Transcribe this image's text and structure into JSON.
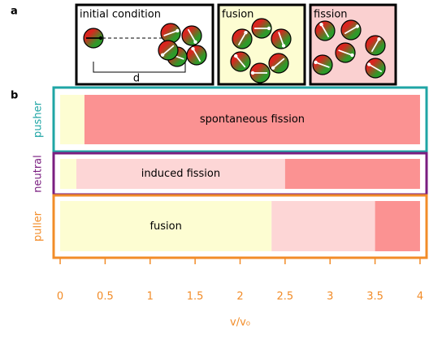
{
  "panels": {
    "a": "a",
    "b": "b",
    "boxes": [
      "initial condition",
      "fusion",
      "fission"
    ],
    "distance_label": "d"
  },
  "chart_data": {
    "type": "stacked-barh",
    "categories": [
      "pusher",
      "neutral",
      "puller"
    ],
    "category_colors": [
      "#1fa5a5",
      "#7a1e80",
      "#f28c28"
    ],
    "series": [
      {
        "color": "#fdfdd2",
        "values": [
          0.27,
          0.18,
          2.35
        ]
      },
      {
        "color": "#fdd6d6",
        "values": [
          0,
          2.32,
          1.15
        ]
      },
      {
        "color": "#fb9292",
        "values": [
          3.73,
          1.5,
          0.5
        ]
      }
    ],
    "annotations": [
      "spontaneous fission",
      "induced fission",
      "fusion"
    ],
    "x_label": "v/v₀",
    "xlim": [
      -0.05,
      4.05
    ],
    "xticks": [
      0,
      0.5,
      1,
      1.5,
      2,
      2.5,
      3,
      3.5,
      4
    ],
    "axis_color": "#f28c28"
  }
}
